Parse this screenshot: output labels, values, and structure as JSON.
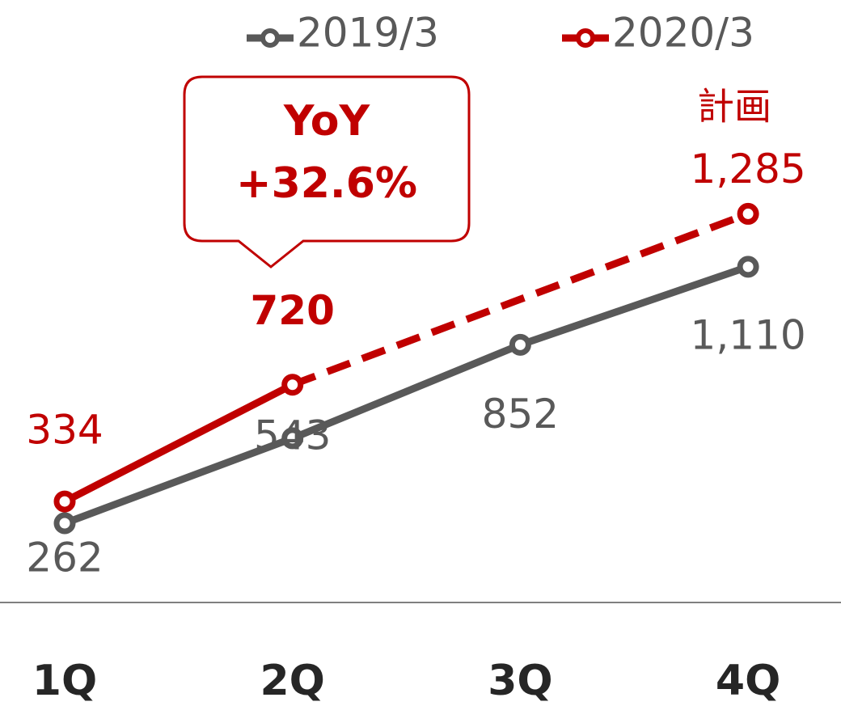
{
  "chart_data": {
    "type": "line",
    "categories": [
      "1Q",
      "2Q",
      "3Q",
      "4Q"
    ],
    "series": [
      {
        "name": "2019/3",
        "color": "#595959",
        "values": [
          262,
          543,
          852,
          1110
        ],
        "value_labels": [
          "262",
          "543",
          "852",
          "1,110"
        ]
      },
      {
        "name": "2020/3",
        "color": "#c00000",
        "values": [
          334,
          720,
          null,
          1285
        ],
        "value_labels": [
          "334",
          "720",
          null,
          "1,285"
        ]
      }
    ],
    "ylim": [
      0,
      2000
    ],
    "annotations": [
      "計画",
      "YoY",
      "+32.6%"
    ]
  }
}
